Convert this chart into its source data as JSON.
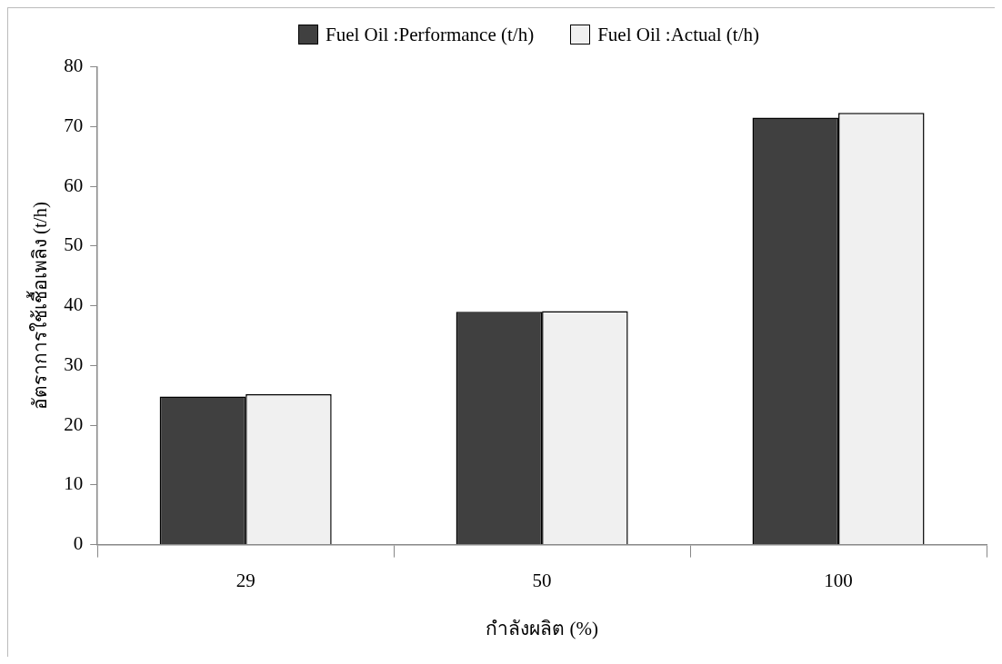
{
  "chart_data": {
    "type": "bar",
    "xlabel": "กำลังผลิต (%)",
    "ylabel": "อัตราการใช้เชื้อเพลิง (t/h)",
    "categories": [
      "29",
      "50",
      "100"
    ],
    "series": [
      {
        "name": "Fuel Oil :Performance (t/h)",
        "color": "#404040",
        "values": [
          24.8,
          39.0,
          71.5
        ]
      },
      {
        "name": "Fuel Oil :Actual (t/h)",
        "color": "#f0f0f0",
        "values": [
          25.2,
          39.1,
          72.3
        ]
      }
    ],
    "ylim": [
      0,
      80
    ],
    "yticks": [
      0,
      10,
      20,
      30,
      40,
      50,
      60,
      70,
      80
    ],
    "grid": false,
    "legend": "top"
  }
}
